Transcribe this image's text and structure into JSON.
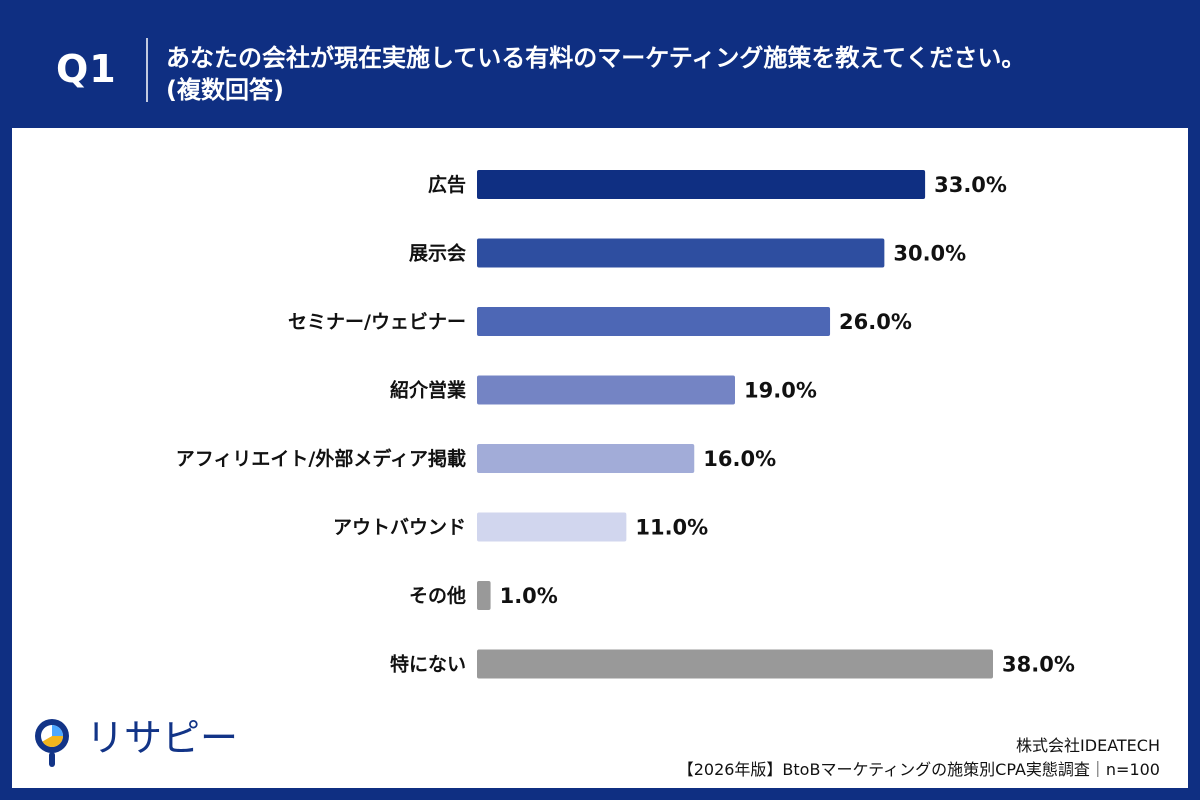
{
  "header": {
    "question_number": "Q1",
    "question_line1": "あなたの会社が現在実施している有料のマーケティング施策を教えてください。",
    "question_line2": "(複数回答)"
  },
  "chart_data": {
    "type": "bar",
    "orientation": "horizontal",
    "categories": [
      "広告",
      "展示会",
      "セミナー/ウェビナー",
      "紹介営業",
      "アフィリエイト/外部メディア掲載",
      "アウトバウンド",
      "その他",
      "特にない"
    ],
    "values": [
      33.0,
      30.0,
      26.0,
      19.0,
      16.0,
      11.0,
      1.0,
      38.0
    ],
    "value_labels": [
      "33.0%",
      "30.0%",
      "26.0%",
      "19.0%",
      "16.0%",
      "11.0%",
      "1.0%",
      "38.0%"
    ],
    "unit": "%",
    "xlim": [
      0,
      38
    ],
    "grid": false,
    "legend": "none",
    "colors": [
      "#0f2f82",
      "#2e4ea0",
      "#4d67b5",
      "#7484c4",
      "#a2acd8",
      "#d1d6ee",
      "#999999",
      "#999999"
    ]
  },
  "footer": {
    "logo_text": "リサピー",
    "company": "株式会社IDEATECH",
    "survey": "【2026年版】BtoBマーケティングの施策別CPA実態調査｜n=100"
  },
  "colors": {
    "header_background": "#0f2f82",
    "panel_background": "#ffffff",
    "label_text": "#111111",
    "logo_blue": "#123487",
    "logo_yellow": "#f2b51d"
  }
}
